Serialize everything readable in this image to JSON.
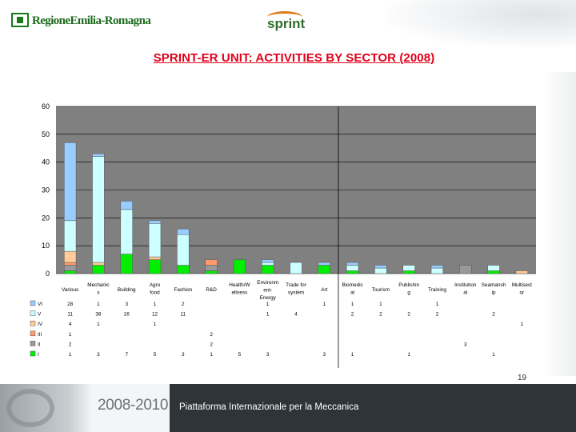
{
  "header": {
    "left_logo_text": "RegioneEmilia-Romagna",
    "sprint_logo_text": "sprint",
    "title": "SPRINT-ER UNIT: ACTIVITIES BY SECTOR (2008)"
  },
  "footer": {
    "years": "2008-2010",
    "tagline": "Piattaforma Internazionale per la Meccanica",
    "page_number": "19"
  },
  "colors": {
    "plot_bg": "#808080",
    "grid": "#000000"
  },
  "chart_data": {
    "type": "bar",
    "stacked": true,
    "ylim": [
      0,
      60
    ],
    "yticks": [
      0,
      10,
      20,
      30,
      40,
      50,
      60
    ],
    "grid": true,
    "legend": "table-left",
    "categories": [
      "Various",
      "Mechanics",
      "Building",
      "Agro food",
      "Fashion",
      "R&D",
      "Health/Wellness",
      "Environment-Energy",
      "Trade for system",
      "Art",
      "Biomedical",
      "Tourism",
      "Publishing",
      "Training",
      "Institutional",
      "Seamanship",
      "Multisector"
    ],
    "category_labels": [
      [
        "Various"
      ],
      [
        "Mechanic",
        "s"
      ],
      [
        "Building"
      ],
      [
        "Agro",
        "food"
      ],
      [
        "Fashion"
      ],
      [
        "R&D"
      ],
      [
        "Health/W",
        "ellness"
      ],
      [
        "Environm",
        "ent-",
        "Energy"
      ],
      [
        "Trade for",
        "system"
      ],
      [
        "Art"
      ],
      [
        "Biomedic",
        "al"
      ],
      [
        "Tourism"
      ],
      [
        "Publishin",
        "g"
      ],
      [
        "Training"
      ],
      [
        "Institution",
        "al"
      ],
      [
        "Seamansh",
        "ip"
      ],
      [
        "Multisect",
        "or"
      ]
    ],
    "series": [
      {
        "name": "I",
        "color": "#00ee00",
        "cells": [
          "1",
          "3",
          "7",
          "5",
          "3",
          "1",
          "5",
          "3",
          "",
          "3",
          "1",
          "",
          "1",
          "",
          "",
          "1",
          ""
        ]
      },
      {
        "name": "II",
        "color": "#999999",
        "cells": [
          "2",
          "",
          "",
          "",
          "",
          "2",
          "",
          "",
          "",
          "",
          "",
          "",
          "",
          "",
          "3",
          "",
          ""
        ]
      },
      {
        "name": "III",
        "color": "#ff9b6e",
        "cells": [
          "1",
          "",
          "",
          "",
          "",
          "2",
          "",
          "",
          "",
          "",
          "",
          "",
          "",
          "",
          "",
          "",
          ""
        ]
      },
      {
        "name": "IV",
        "color": "#ffcc99",
        "cells": [
          "4",
          "1",
          "",
          "1",
          "",
          "",
          "",
          "",
          "",
          "",
          "",
          "",
          "",
          "",
          "",
          "",
          "1"
        ]
      },
      {
        "name": "V",
        "color": "#ccffff",
        "cells": [
          "11",
          "38",
          "16",
          "12",
          "11",
          "",
          "",
          "1",
          "4",
          "",
          "2",
          "2",
          "2",
          "2",
          "",
          "2",
          ""
        ]
      },
      {
        "name": "VI",
        "color": "#99ccff",
        "cells": [
          "28",
          "1",
          "3",
          "1",
          "2",
          "",
          "",
          "1",
          "",
          "1",
          "1",
          "1",
          "",
          "1",
          "",
          "",
          ""
        ]
      }
    ],
    "legend_labels": [
      "VI",
      "V",
      "IV",
      "III",
      "II",
      "I"
    ],
    "stacks_bottom_to_top": [
      "I",
      "II",
      "III",
      "IV",
      "V",
      "VI"
    ]
  }
}
